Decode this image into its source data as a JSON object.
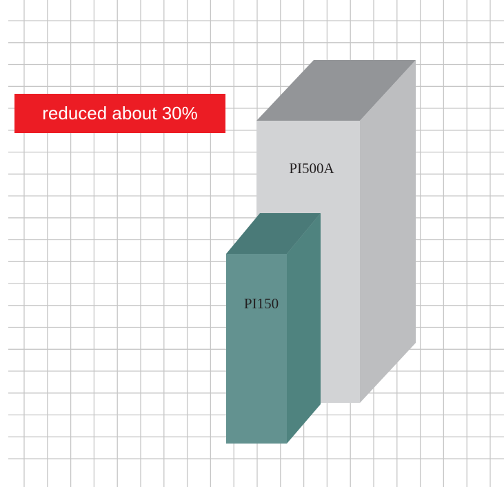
{
  "badge": {
    "text": "reduced about 30%"
  },
  "products": [
    {
      "name": "PI500A"
    },
    {
      "name": "PI150"
    }
  ],
  "colors": {
    "grid_line": "#c6c6c6",
    "badge_fill": "#ec1c24",
    "badge_text": "#ffffff",
    "large_box_front": "#d2d3d5",
    "large_box_top": "#939598",
    "large_box_side": "#bdbec0",
    "small_box_front": "#639290",
    "small_box_top": "#4a7a78",
    "small_box_side": "#4f837f",
    "label_text": "#231f20"
  }
}
